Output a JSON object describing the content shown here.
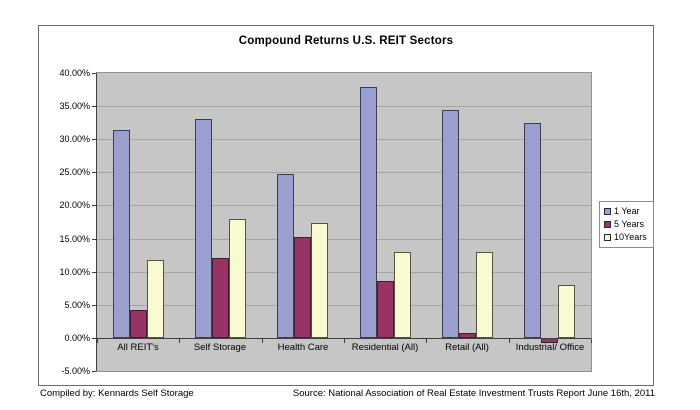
{
  "page": {
    "compiled_by": "Compiled by: Kennards Self Storage",
    "source": "Source: National Association of Real Estate Investment Trusts Report June 16th, 2011"
  },
  "chart_data": {
    "type": "bar",
    "title": "Compound Returns U.S. REIT Sectors",
    "categories": [
      "All REIT's",
      "Self Storage",
      "Health Care",
      "Residential (All)",
      "Retail (All)",
      "Industrial/ Office"
    ],
    "series": [
      {
        "name": "1 Year",
        "color": "#9a9fd0",
        "border": "#3d3d52",
        "values": [
          31.4,
          33.0,
          24.8,
          37.9,
          34.5,
          32.5
        ]
      },
      {
        "name": "5 Years",
        "color": "#993366",
        "border": "#3d2030",
        "values": [
          4.3,
          12.1,
          15.3,
          8.6,
          0.7,
          -0.7
        ]
      },
      {
        "name": "10Years",
        "color": "#fafad2",
        "border": "#55553d",
        "values": [
          11.8,
          18.0,
          17.3,
          13.0,
          13.0,
          8.0
        ]
      }
    ],
    "ylabel_format": "percent",
    "ylim": [
      -5,
      40
    ],
    "yticks": [
      {
        "label": "40.00%",
        "value": 40
      },
      {
        "label": "35.00%",
        "value": 35
      },
      {
        "label": "30.00%",
        "value": 30
      },
      {
        "label": "25.00%",
        "value": 25
      },
      {
        "label": "20.00%",
        "value": 20
      },
      {
        "label": "15.00%",
        "value": 15
      },
      {
        "label": "10.00%",
        "value": 10
      },
      {
        "label": "5.00%",
        "value": 5
      },
      {
        "label": "0.00%",
        "value": 0
      },
      {
        "label": "-5.00%",
        "value": -5
      }
    ],
    "grid": true,
    "legend_position": "right",
    "colors": {
      "plot_bg": "#c6c6c6",
      "grid": "#a6a6a6",
      "axis": "#3f3f3f",
      "frame_border": "#6b6b6b"
    }
  }
}
